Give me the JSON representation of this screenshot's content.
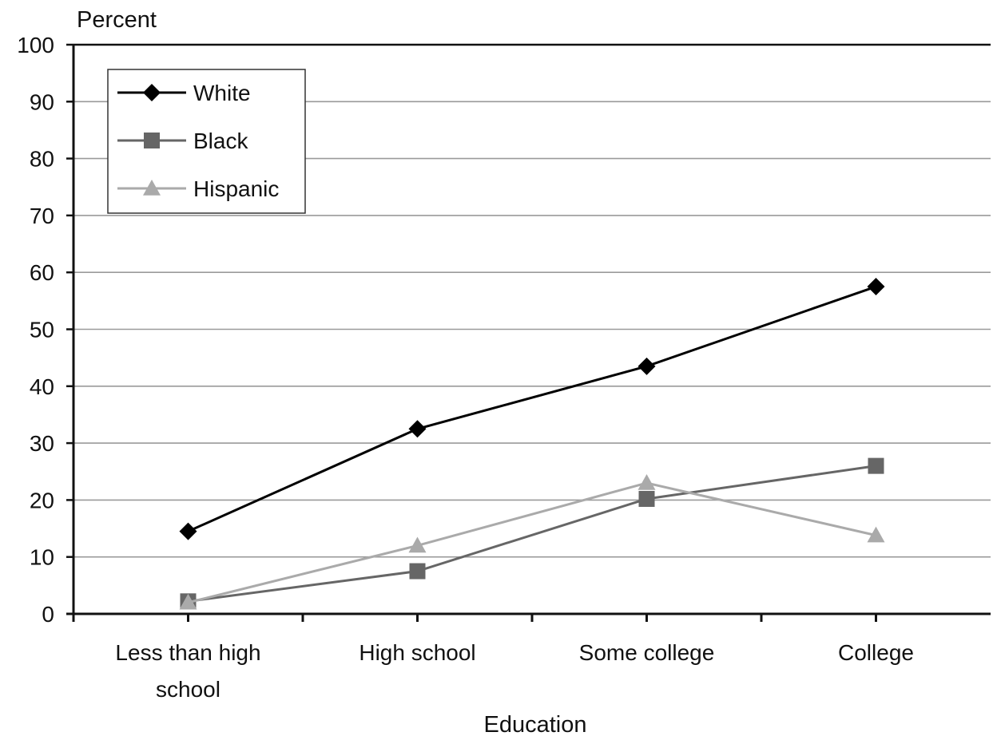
{
  "chart_data": {
    "type": "line",
    "title": "",
    "ylabel": "Percent",
    "xlabel": "Education",
    "categories": [
      [
        "Less than high",
        "school"
      ],
      [
        "High school"
      ],
      [
        "Some college"
      ],
      [
        "College"
      ]
    ],
    "ylim": [
      0,
      100
    ],
    "yticks": [
      0,
      10,
      20,
      30,
      40,
      50,
      60,
      70,
      80,
      90,
      100
    ],
    "grid": true,
    "legend_position": "top-left",
    "series": [
      {
        "name": "White",
        "values": [
          14.5,
          32.5,
          43.5,
          57.5
        ],
        "color": "#000000",
        "marker": "diamond"
      },
      {
        "name": "Black",
        "values": [
          2.2,
          7.5,
          20.2,
          26
        ],
        "color": "#666666",
        "marker": "square"
      },
      {
        "name": "Hispanic",
        "values": [
          2.0,
          12.0,
          23.0,
          13.8
        ],
        "color": "#aaaaaa",
        "marker": "triangle"
      }
    ]
  }
}
